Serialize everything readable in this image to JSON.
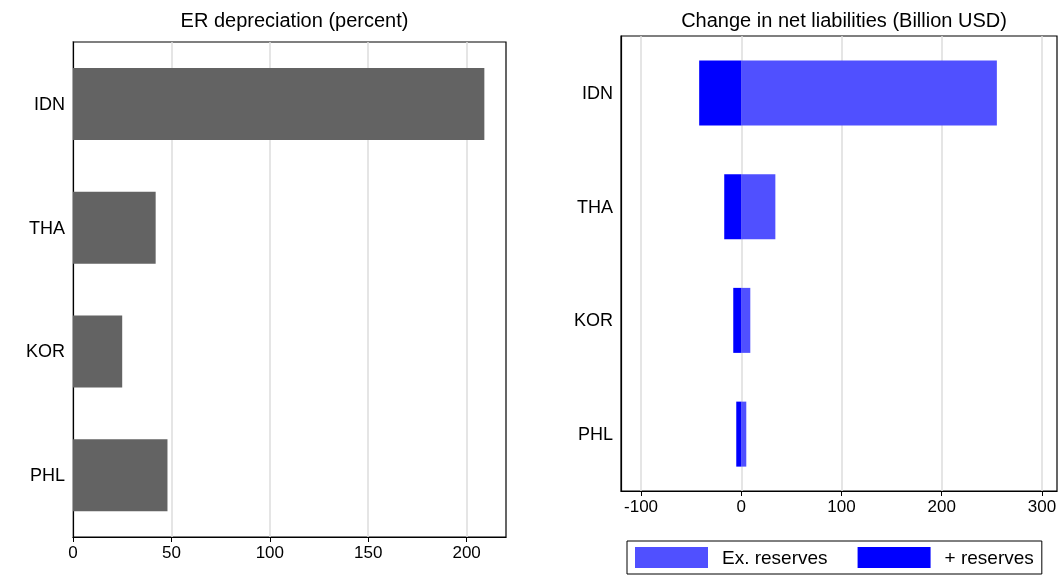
{
  "chart_data": [
    {
      "type": "bar",
      "orientation": "horizontal",
      "title": "ER depreciation (percent)",
      "categories": [
        "IDN",
        "THA",
        "KOR",
        "PHL"
      ],
      "values": [
        209,
        42,
        25,
        48
      ],
      "color": "#636363",
      "xlim": [
        0,
        220
      ],
      "xticks": [
        0,
        50,
        100,
        150,
        200
      ],
      "grid": "x"
    },
    {
      "type": "bar",
      "orientation": "horizontal",
      "stacked": true,
      "title": "Change in net liabilities (Billion USD)",
      "categories": [
        "IDN",
        "THA",
        "KOR",
        "PHL"
      ],
      "series": [
        {
          "name": "Ex. reserves",
          "color": "#5050ff",
          "values": [
            255,
            34,
            9,
            5
          ]
        },
        {
          "name": "+ reserves",
          "color": "#0000ff",
          "values": [
            -42,
            -17,
            -8,
            -5
          ]
        }
      ],
      "xlim": [
        -120,
        315
      ],
      "xticks": [
        -100,
        0,
        100,
        200,
        300
      ],
      "grid": "x",
      "legend": "bottom"
    }
  ]
}
